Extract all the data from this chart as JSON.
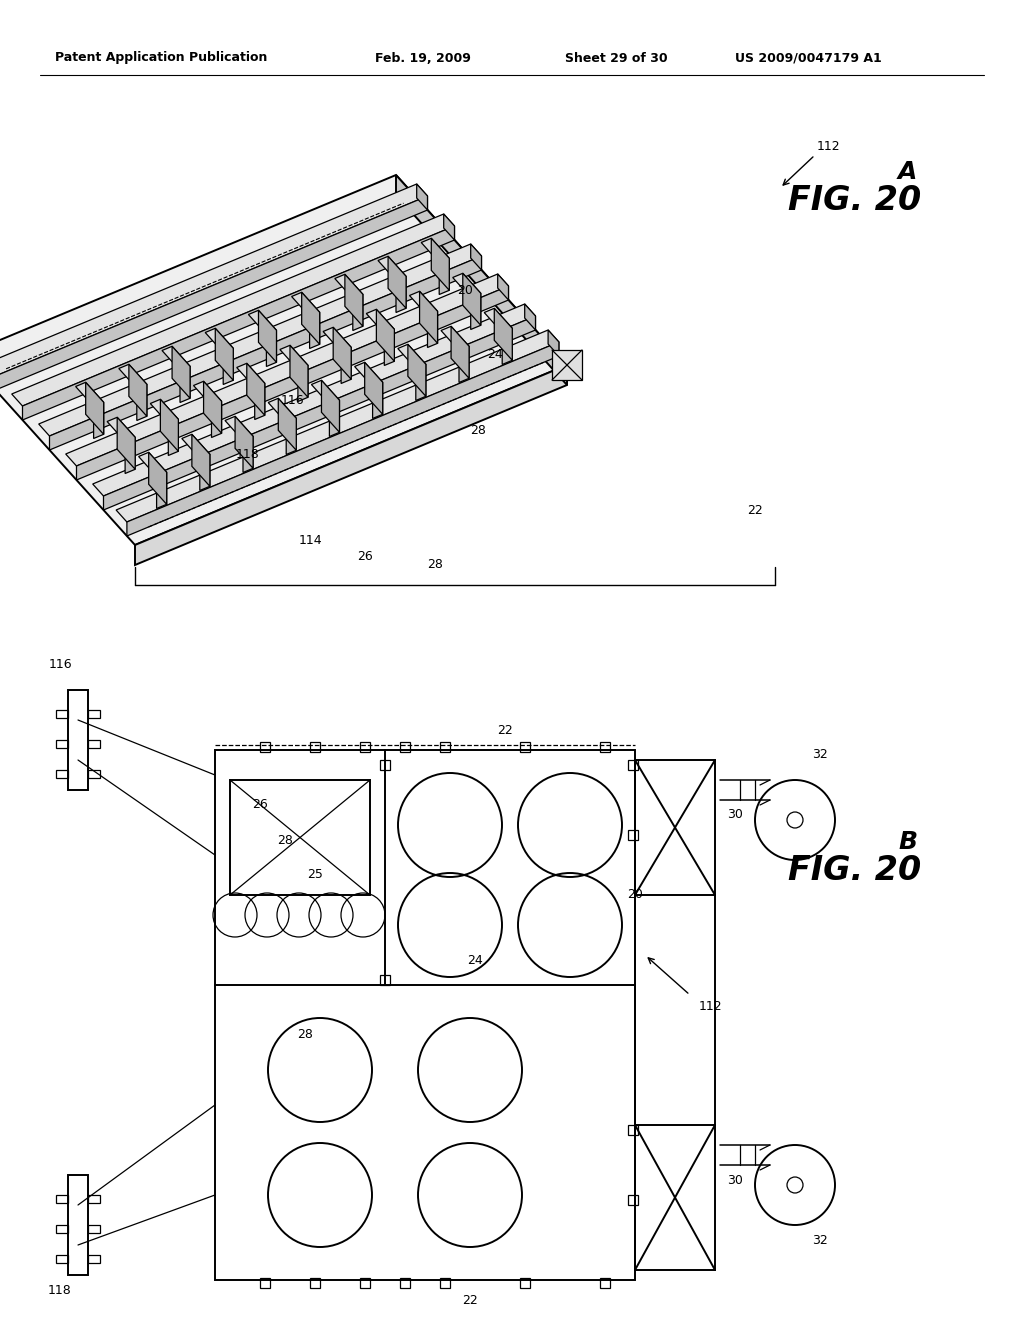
{
  "bg_color": "#ffffff",
  "line_color": "#000000",
  "header_text": "Patent Application Publication",
  "header_date": "Feb. 19, 2009",
  "header_sheet": "Sheet 29 of 30",
  "header_patent": "US 2009/0047179 A1",
  "fig_a_label": "FIG. 20",
  "fig_a_sub": "A",
  "fig_b_label": "FIG. 20",
  "fig_b_sub": "B"
}
